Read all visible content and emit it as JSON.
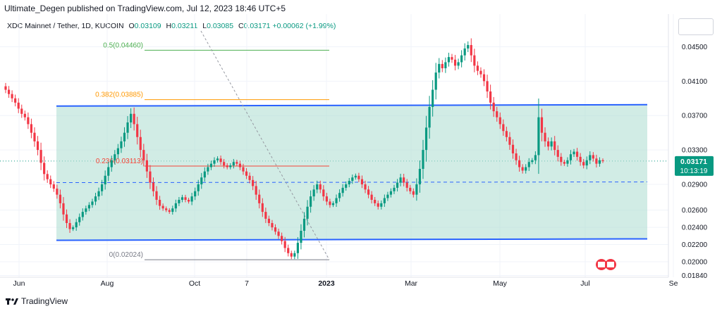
{
  "publisher": "Ultimate_Degen published on TradingView.com, Jul 12, 2023 18:46 UTC+5",
  "legend": {
    "symbol": "XDC Mainnet / Tether, 1D, KUCOIN",
    "open_label": "O",
    "open": "0.03109",
    "high_label": "H",
    "high": "0.03211",
    "low_label": "L",
    "low": "0.03085",
    "close_label": "C",
    "close": "0.03171",
    "change": "+0.00062 (+1.99%)"
  },
  "brand": "TradingView",
  "colors": {
    "up": "#089981",
    "down": "#f23645",
    "channel_fill": "#b2dfd4",
    "channel_line": "#2962ff",
    "fib_0.5": "#4caf50",
    "fib_0.382": "#ff9800",
    "fib_0.236": "#f44336",
    "fib_0": "#787b86",
    "price_tag": "#089981"
  },
  "chart_data": {
    "type": "candlestick",
    "symbol": "XDC Mainnet / Tether",
    "interval": "1D",
    "exchange": "KUCOIN",
    "ylim": [
      0.0182,
      0.0488
    ],
    "y_ticks": [
      "0.04500",
      "0.04100",
      "0.03700",
      "0.03300",
      "0.02900",
      "0.02600",
      "0.02400",
      "0.02200",
      "0.02000",
      "0.01840"
    ],
    "x_ticks": [
      "Jun",
      "Aug",
      "Oct",
      "7",
      "2023",
      "Mar",
      "May",
      "Jul",
      "Se"
    ],
    "last_price": "0.03171",
    "countdown": "10:13:19",
    "fib_levels": [
      {
        "label": "0.5(0.04460)",
        "value": 0.0446
      },
      {
        "label": "0.382(0.03885)",
        "value": 0.03885
      },
      {
        "label": "0.236(0.03113)",
        "value": 0.03113
      },
      {
        "label": "0(0.02024)",
        "value": 0.02024
      }
    ],
    "channel": {
      "upper": 0.0381,
      "lower": 0.0225,
      "mid": 0.0292
    },
    "close_path": [
      0.04,
      0.0395,
      0.039,
      0.0385,
      0.0378,
      0.0372,
      0.0368,
      0.036,
      0.035,
      0.034,
      0.033,
      0.0315,
      0.0302,
      0.0296,
      0.029,
      0.0285,
      0.0278,
      0.0268,
      0.0255,
      0.0245,
      0.0238,
      0.024,
      0.0246,
      0.0252,
      0.0258,
      0.0262,
      0.0266,
      0.027,
      0.0276,
      0.0282,
      0.029,
      0.03,
      0.031,
      0.0318,
      0.0325,
      0.0332,
      0.034,
      0.035,
      0.0362,
      0.0372,
      0.036,
      0.0345,
      0.033,
      0.0318,
      0.0305,
      0.0292,
      0.0282,
      0.0272,
      0.0265,
      0.0262,
      0.026,
      0.0258,
      0.0262,
      0.0268,
      0.0272,
      0.0275,
      0.0272,
      0.027,
      0.0276,
      0.0282,
      0.029,
      0.0298,
      0.0305,
      0.031,
      0.0314,
      0.0318,
      0.032,
      0.0316,
      0.0312,
      0.031,
      0.0312,
      0.0316,
      0.0314,
      0.031,
      0.0305,
      0.03,
      0.0295,
      0.0288,
      0.0278,
      0.0268,
      0.0258,
      0.025,
      0.0245,
      0.024,
      0.0235,
      0.023,
      0.0224,
      0.0216,
      0.021,
      0.0206,
      0.021,
      0.0222,
      0.0236,
      0.025,
      0.0264,
      0.0276,
      0.0284,
      0.029,
      0.0284,
      0.0276,
      0.027,
      0.0266,
      0.0268,
      0.0274,
      0.028,
      0.0286,
      0.029,
      0.0294,
      0.0298,
      0.03,
      0.0296,
      0.029,
      0.0284,
      0.0278,
      0.0272,
      0.0268,
      0.0264,
      0.0268,
      0.0274,
      0.0278,
      0.0282,
      0.0286,
      0.0292,
      0.0298,
      0.0292,
      0.0286,
      0.0282,
      0.0278,
      0.029,
      0.0308,
      0.033,
      0.0356,
      0.038,
      0.04,
      0.042,
      0.043,
      0.0425,
      0.0432,
      0.0438,
      0.0435,
      0.0428,
      0.0432,
      0.044,
      0.0448,
      0.0452,
      0.044,
      0.0428,
      0.0422,
      0.0418,
      0.041,
      0.0398,
      0.0385,
      0.0375,
      0.0368,
      0.036,
      0.0352,
      0.0345,
      0.0336,
      0.0326,
      0.0318,
      0.031,
      0.0306,
      0.031,
      0.0316,
      0.0318,
      0.0324,
      0.0368,
      0.035,
      0.034,
      0.0334,
      0.034,
      0.033,
      0.0322,
      0.0316,
      0.0314,
      0.0318,
      0.0325,
      0.0328,
      0.0322,
      0.0316,
      0.0312,
      0.0318,
      0.0324,
      0.032,
      0.0314,
      0.0318,
      0.0317
    ]
  }
}
